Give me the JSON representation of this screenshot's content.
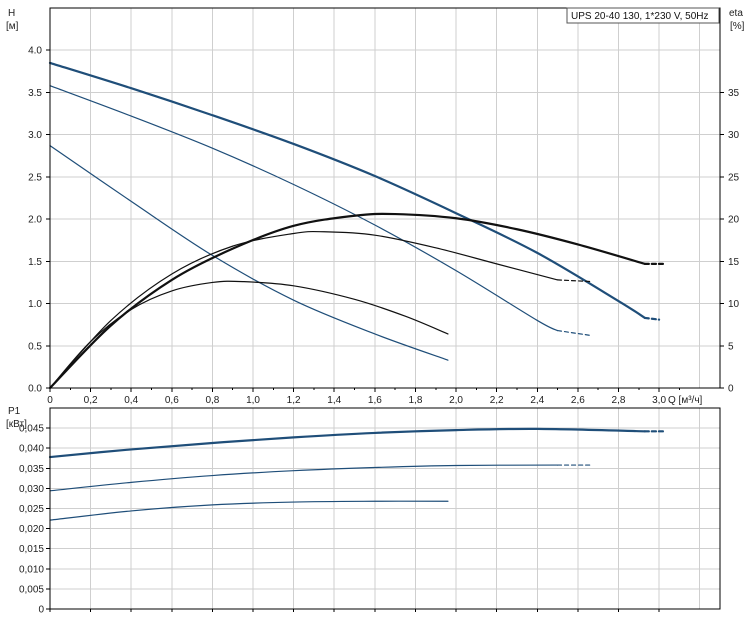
{
  "chart_data": [
    {
      "type": "line",
      "title": "UPS 20-40 130, 1*230 V, 50Hz",
      "xlabel": "Q [м³/ч]",
      "ylabel": "H",
      "ylabel_unit": "[м]",
      "y2label": "eta",
      "y2label_unit": "[%]",
      "xlim": [
        0,
        3.3
      ],
      "ylim": [
        0,
        4.5
      ],
      "y2lim": [
        0,
        45
      ],
      "x_ticks": [
        "0",
        "0,2",
        "0,4",
        "0,6",
        "0,8",
        "1,0",
        "1,2",
        "1,4",
        "1,6",
        "1,8",
        "2,0",
        "2,2",
        "2,4",
        "2,6",
        "2,8",
        "3,0"
      ],
      "y_ticks": [
        "0.0",
        "0.5",
        "1.0",
        "1.5",
        "2.0",
        "2.5",
        "3.0",
        "3.5",
        "4.0"
      ],
      "y2_ticks": [
        "0",
        "5",
        "10",
        "15",
        "20",
        "25",
        "30",
        "35"
      ],
      "grid": true,
      "legend_position": "top-right",
      "series": [
        {
          "axis": "left",
          "color": "#1f4e79",
          "width": 2.2,
          "x": [
            0,
            0.4,
            0.8,
            1.2,
            1.6,
            2.0,
            2.4,
            2.8,
            2.93
          ],
          "y": [
            3.85,
            3.55,
            3.23,
            2.89,
            2.51,
            2.07,
            1.6,
            1.03,
            0.83
          ],
          "ext_x": [
            2.93,
            3.0
          ],
          "ext_y": [
            0.83,
            0.81
          ]
        },
        {
          "axis": "left",
          "color": "#1f4e79",
          "width": 1.2,
          "x": [
            0,
            0.4,
            0.8,
            1.2,
            1.6,
            2.0,
            2.4,
            2.5
          ],
          "y": [
            3.58,
            3.22,
            2.84,
            2.41,
            1.93,
            1.39,
            0.8,
            0.68
          ],
          "ext_x": [
            2.5,
            2.67
          ],
          "ext_y": [
            0.68,
            0.62
          ]
        },
        {
          "axis": "left",
          "color": "#1f4e79",
          "width": 1.2,
          "x": [
            0,
            0.4,
            0.8,
            1.2,
            1.6,
            1.96
          ],
          "y": [
            2.87,
            2.21,
            1.57,
            1.04,
            0.64,
            0.33
          ]
        },
        {
          "axis": "right",
          "color": "#111111",
          "width": 2.2,
          "x": [
            0,
            0.3,
            0.6,
            0.9,
            1.2,
            1.5,
            1.7,
            2.0,
            2.3,
            2.6,
            2.93
          ],
          "y": [
            0,
            7.4,
            12.8,
            16.5,
            19.2,
            20.4,
            20.6,
            20.1,
            18.8,
            17.0,
            14.7
          ],
          "ext_x": [
            2.93,
            3.02
          ],
          "ext_y": [
            14.7,
            14.7
          ]
        },
        {
          "axis": "right",
          "color": "#111111",
          "width": 1.2,
          "x": [
            0,
            0.3,
            0.6,
            0.9,
            1.2,
            1.35,
            1.6,
            1.9,
            2.2,
            2.5
          ],
          "y": [
            0,
            8.0,
            13.5,
            16.8,
            18.3,
            18.5,
            18.1,
            16.6,
            14.7,
            12.8
          ],
          "ext_x": [
            2.5,
            2.67
          ],
          "ext_y": [
            12.8,
            12.6
          ]
        },
        {
          "axis": "right",
          "color": "#111111",
          "width": 1.2,
          "x": [
            0,
            0.2,
            0.4,
            0.6,
            0.8,
            0.95,
            1.2,
            1.5,
            1.75,
            1.96
          ],
          "y": [
            0,
            5.5,
            9.3,
            11.5,
            12.5,
            12.6,
            12.1,
            10.5,
            8.5,
            6.4
          ]
        }
      ]
    },
    {
      "type": "line",
      "ylabel": "P1",
      "ylabel_unit": "[кВт]",
      "xlim": [
        0,
        3.3
      ],
      "ylim": [
        0,
        0.05
      ],
      "y_ticks": [
        "0",
        "0,005",
        "0,010",
        "0,015",
        "0,020",
        "0,025",
        "0,030",
        "0,035",
        "0,040",
        "0,045"
      ],
      "grid": true,
      "series": [
        {
          "color": "#1f4e79",
          "width": 2.2,
          "x": [
            0,
            0.4,
            0.8,
            1.2,
            1.6,
            2.0,
            2.4,
            2.93
          ],
          "y": [
            0.0378,
            0.0397,
            0.0413,
            0.0427,
            0.0438,
            0.0445,
            0.0448,
            0.0442
          ],
          "ext_x": [
            2.93,
            3.02
          ],
          "ext_y": [
            0.0442,
            0.0442
          ]
        },
        {
          "color": "#1f4e79",
          "width": 1.2,
          "x": [
            0,
            0.4,
            0.8,
            1.2,
            1.6,
            2.0,
            2.5
          ],
          "y": [
            0.0294,
            0.0315,
            0.0332,
            0.0344,
            0.0352,
            0.0357,
            0.0358
          ],
          "ext_x": [
            2.5,
            2.67
          ],
          "ext_y": [
            0.0358,
            0.0358
          ]
        },
        {
          "color": "#1f4e79",
          "width": 1.2,
          "x": [
            0,
            0.4,
            0.8,
            1.2,
            1.6,
            1.96
          ],
          "y": [
            0.0221,
            0.0244,
            0.0259,
            0.0266,
            0.0268,
            0.0268
          ]
        }
      ]
    }
  ]
}
